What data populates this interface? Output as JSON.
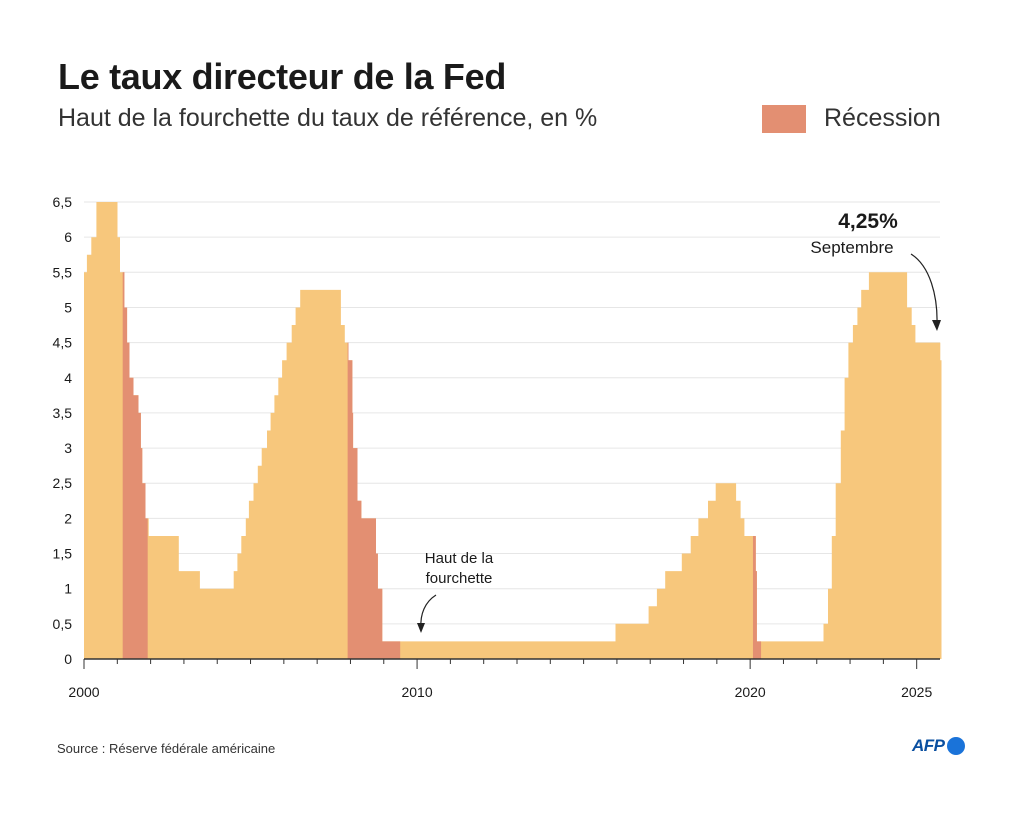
{
  "header": {
    "title": "Le taux directeur de la Fed",
    "subtitle": "Haut de la fourchette du taux de référence, en %"
  },
  "legend": {
    "recession_label": "Récession"
  },
  "colors": {
    "rate": "#f7c77c",
    "recession": "#e38f72",
    "grid": "#e6e6e6",
    "text": "#1a1a1a"
  },
  "chart_data": {
    "type": "area",
    "title": "Le taux directeur de la Fed",
    "subtitle": "Haut de la fourchette du taux de référence, en %",
    "xlim": [
      2000,
      2025.7
    ],
    "ylim": [
      0,
      6.5
    ],
    "y_ticks": [
      "0",
      "0,5",
      "1",
      "1,5",
      "2",
      "2,5",
      "3",
      "3,5",
      "4",
      "4,5",
      "5",
      "5,5",
      "6",
      "6,5"
    ],
    "x_ticks": [
      "2000",
      "2010",
      "2020",
      "2025"
    ],
    "grid": true,
    "series": [
      {
        "values": [
          [
            "2000-01-01",
            5.5
          ],
          [
            "2000-02-02",
            5.75
          ],
          [
            "2000-03-21",
            6.0
          ],
          [
            "2000-05-16",
            6.5
          ],
          [
            "2001-01-03",
            6.0
          ],
          [
            "2001-01-31",
            5.5
          ],
          [
            "2001-03-20",
            5.0
          ],
          [
            "2001-04-18",
            4.5
          ],
          [
            "2001-05-15",
            4.0
          ],
          [
            "2001-06-27",
            3.75
          ],
          [
            "2001-08-21",
            3.5
          ],
          [
            "2001-09-17",
            3.0
          ],
          [
            "2001-10-02",
            2.5
          ],
          [
            "2001-11-06",
            2.0
          ],
          [
            "2001-12-11",
            1.75
          ],
          [
            "2002-11-06",
            1.25
          ],
          [
            "2003-06-25",
            1.0
          ],
          [
            "2004-06-30",
            1.25
          ],
          [
            "2004-08-10",
            1.5
          ],
          [
            "2004-09-21",
            1.75
          ],
          [
            "2004-11-10",
            2.0
          ],
          [
            "2004-12-14",
            2.25
          ],
          [
            "2005-02-02",
            2.5
          ],
          [
            "2005-03-22",
            2.75
          ],
          [
            "2005-05-03",
            3.0
          ],
          [
            "2005-06-30",
            3.25
          ],
          [
            "2005-08-09",
            3.5
          ],
          [
            "2005-09-20",
            3.75
          ],
          [
            "2005-11-01",
            4.0
          ],
          [
            "2005-12-13",
            4.25
          ],
          [
            "2006-01-31",
            4.5
          ],
          [
            "2006-03-28",
            4.75
          ],
          [
            "2006-05-10",
            5.0
          ],
          [
            "2006-06-29",
            5.25
          ],
          [
            "2007-09-18",
            4.75
          ],
          [
            "2007-10-31",
            4.5
          ],
          [
            "2007-12-11",
            4.25
          ],
          [
            "2008-01-22",
            3.5
          ],
          [
            "2008-01-30",
            3.0
          ],
          [
            "2008-03-18",
            2.25
          ],
          [
            "2008-04-30",
            2.0
          ],
          [
            "2008-10-08",
            1.5
          ],
          [
            "2008-10-29",
            1.0
          ],
          [
            "2008-12-16",
            0.25
          ],
          [
            "2015-12-16",
            0.5
          ],
          [
            "2016-12-14",
            0.75
          ],
          [
            "2017-03-15",
            1.0
          ],
          [
            "2017-06-14",
            1.25
          ],
          [
            "2017-12-13",
            1.5
          ],
          [
            "2018-03-21",
            1.75
          ],
          [
            "2018-06-13",
            2.0
          ],
          [
            "2018-09-26",
            2.25
          ],
          [
            "2018-12-19",
            2.5
          ],
          [
            "2019-07-31",
            2.25
          ],
          [
            "2019-09-18",
            2.0
          ],
          [
            "2019-10-30",
            1.75
          ],
          [
            "2020-03-03",
            1.25
          ],
          [
            "2020-03-15",
            0.25
          ],
          [
            "2022-03-16",
            0.5
          ],
          [
            "2022-05-04",
            1.0
          ],
          [
            "2022-06-15",
            1.75
          ],
          [
            "2022-07-27",
            2.5
          ],
          [
            "2022-09-21",
            3.25
          ],
          [
            "2022-11-02",
            4.0
          ],
          [
            "2022-12-14",
            4.5
          ],
          [
            "2023-02-01",
            4.75
          ],
          [
            "2023-03-22",
            5.0
          ],
          [
            "2023-05-03",
            5.25
          ],
          [
            "2023-07-26",
            5.5
          ],
          [
            "2024-09-18",
            5.0
          ],
          [
            "2024-11-07",
            4.75
          ],
          [
            "2024-12-18",
            4.5
          ],
          [
            "2025-09-17",
            4.25
          ],
          [
            "2025-09-30",
            4.25
          ]
        ]
      }
    ],
    "recessions": [
      {
        "label": "Récession",
        "start": "2001-03-01",
        "end": "2001-11-30"
      },
      {
        "label": "Récession",
        "start": "2007-12-01",
        "end": "2009-06-30"
      },
      {
        "label": "Récession",
        "start": "2020-02-01",
        "end": "2020-04-30"
      }
    ],
    "annotations": {
      "latest_value": "4,25%",
      "latest_label": "Septembre",
      "range_note": [
        "Haut de la",
        "fourchette"
      ]
    }
  },
  "footer": {
    "source": "Source : Réserve fédérale américaine",
    "logo": "AFP"
  }
}
